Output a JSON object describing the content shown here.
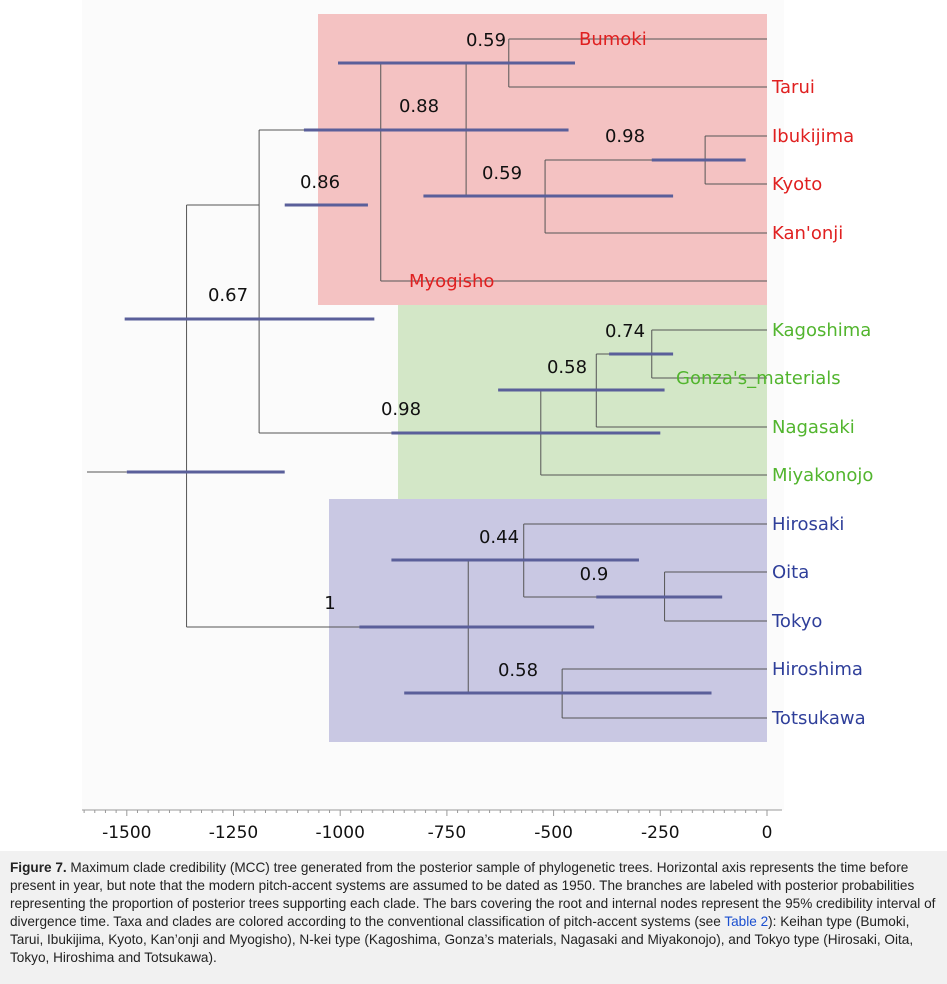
{
  "chart_data": {
    "type": "phylogenetic-tree",
    "x_axis": {
      "ticks": [
        -1500,
        -1250,
        -1000,
        -750,
        -500,
        -250,
        0
      ],
      "range": [
        -1600,
        0
      ]
    },
    "clades": [
      {
        "group": "Keihan",
        "color": "#f4c2c2"
      },
      {
        "group": "N-kei",
        "color": "#d3e7c7"
      },
      {
        "group": "Tokyo",
        "color": "#c9c8e3"
      }
    ],
    "taxa": [
      {
        "name": "Bumoki",
        "color": "#e02020"
      },
      {
        "name": "Tarui",
        "color": "#e02020"
      },
      {
        "name": "Ibukijima",
        "color": "#e02020"
      },
      {
        "name": "Kyoto",
        "color": "#e02020"
      },
      {
        "name": "Kan'onji",
        "color": "#e02020"
      },
      {
        "name": "Myogisho",
        "color": "#e02020"
      },
      {
        "name": "Kagoshima",
        "color": "#52b52e"
      },
      {
        "name": "Gonza's_materials",
        "color": "#52b52e"
      },
      {
        "name": "Nagasaki",
        "color": "#52b52e"
      },
      {
        "name": "Miyakonojo",
        "color": "#52b52e"
      },
      {
        "name": "Hirosaki",
        "color": "#2f3f9a"
      },
      {
        "name": "Oita",
        "color": "#2f3f9a"
      },
      {
        "name": "Tokyo",
        "color": "#2f3f9a"
      },
      {
        "name": "Hiroshima",
        "color": "#2f3f9a"
      },
      {
        "name": "Totsukawa",
        "color": "#2f3f9a"
      }
    ],
    "nodes": [
      {
        "label": "",
        "age": -1500,
        "hpd": [
          -1500,
          -1130
        ]
      },
      {
        "label": "0.67",
        "age": -1360,
        "hpd": [
          -1505,
          -920
        ]
      },
      {
        "label": "0.86",
        "age": -1190,
        "hpd": [
          -1130,
          -935
        ]
      },
      {
        "label": "0.88",
        "age": -905,
        "hpd": [
          -1085,
          -465
        ]
      },
      {
        "label": "0.59",
        "age": -705,
        "hpd": [
          -1005,
          -450
        ]
      },
      {
        "label": "0.59",
        "age": -605,
        "hpd": [
          -1005,
          -450
        ]
      },
      {
        "label": "0.59",
        "age": -520,
        "hpd": [
          -805,
          -220
        ]
      },
      {
        "label": "0.98",
        "age": -145,
        "hpd": [
          -270,
          -50
        ]
      },
      {
        "label": "0.98",
        "age": -530,
        "hpd": [
          -880,
          -250
        ]
      },
      {
        "label": "0.58",
        "age": -400,
        "hpd": [
          -630,
          -240
        ]
      },
      {
        "label": "0.74",
        "age": -270,
        "hpd": [
          -370,
          -220
        ]
      },
      {
        "label": "1",
        "age": -700,
        "hpd": [
          -955,
          -405
        ]
      },
      {
        "label": "0.44",
        "age": -570,
        "hpd": [
          -880,
          -300
        ]
      },
      {
        "label": "0.9",
        "age": -240,
        "hpd": [
          -400,
          -105
        ]
      },
      {
        "label": "0.58",
        "age": -480,
        "hpd": [
          -850,
          -130
        ]
      }
    ]
  },
  "caption": {
    "lead": "Figure 7.",
    "text_before_link": " Maximum clade credibility (MCC) tree generated from the posterior sample of phylogenetic trees. Horizontal axis represents the time before present in year, but note that the modern pitch-accent systems are assumed to be dated as 1950. The branches are labeled with posterior probabilities representing the proportion of posterior trees supporting each clade. The bars covering the root and internal nodes represent the 95% credibility interval of divergence time. Taxa and clades are colored according to the conventional classification of pitch-accent systems (see ",
    "link": "Table 2",
    "text_after_link": "): Keihan type (Bumoki, Tarui, Ibukijima, Kyoto, Kan’onji and Myogisho), N-kei type (Kagoshima, Gonza’s materials, Nagasaki and Miyakonojo), and Tokyo type (Hirosaki, Oita, Tokyo, Hiroshima and Totsukawa)."
  }
}
